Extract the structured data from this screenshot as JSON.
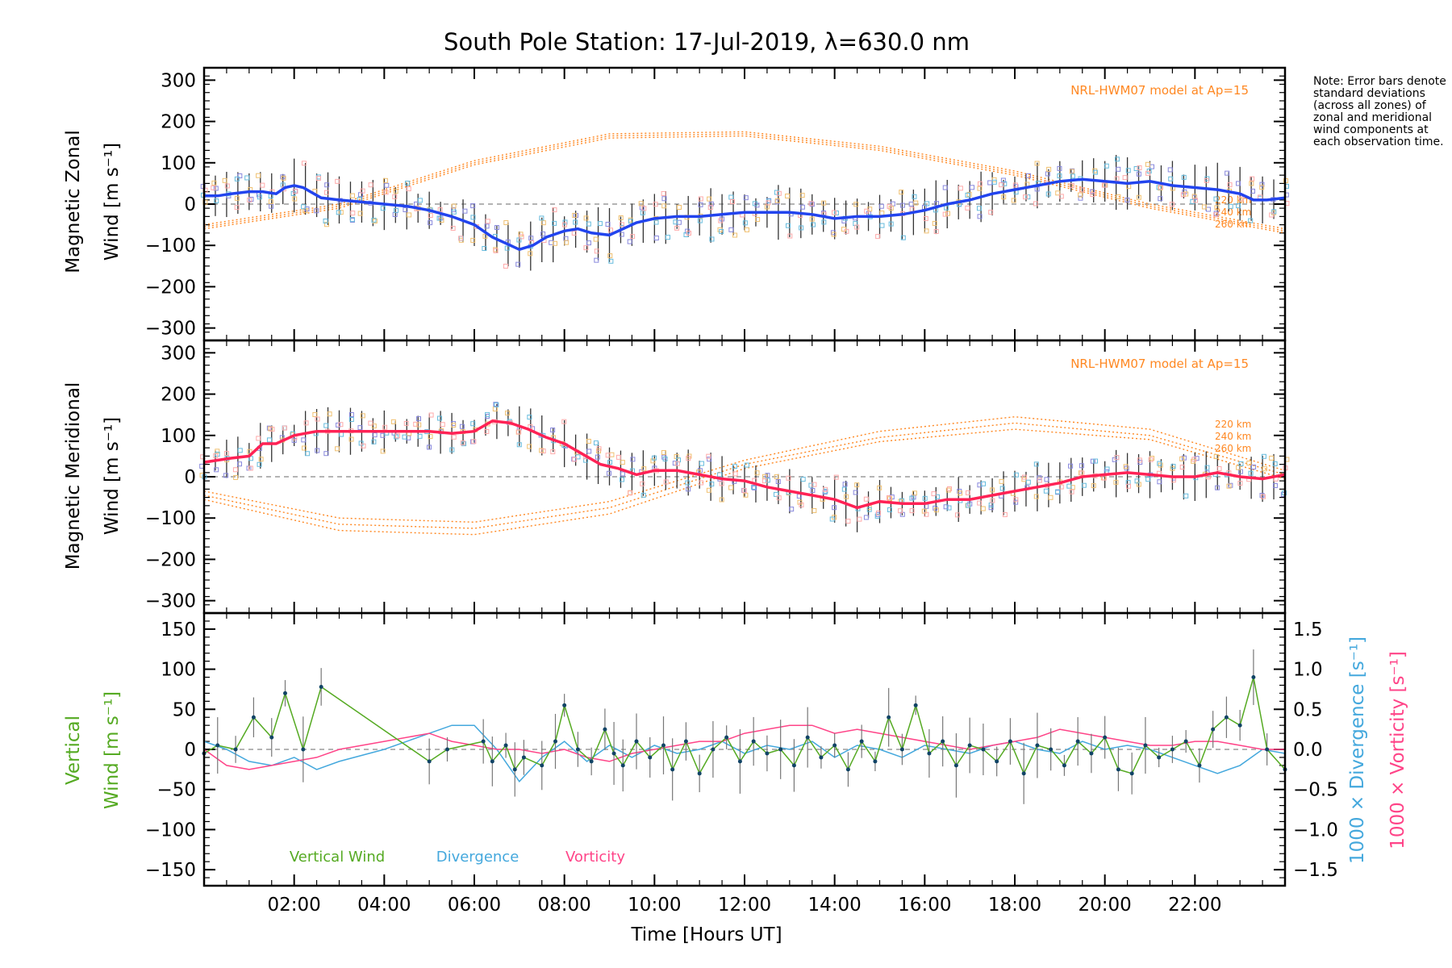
{
  "chart_data": {
    "type": "line",
    "title": "South Pole Station: 17-Jul-2019, λ=630.0 nm",
    "xlabel": "Time [Hours UT]",
    "xlim": [
      0,
      24
    ],
    "xticks": [
      2,
      4,
      6,
      8,
      10,
      12,
      14,
      16,
      18,
      20,
      22
    ],
    "xtick_labels": [
      "02:00",
      "04:00",
      "06:00",
      "08:00",
      "10:00",
      "12:00",
      "14:00",
      "16:00",
      "18:00",
      "20:00",
      "22:00"
    ],
    "note": "Note: Error bars denote standard deviations (across all zones) of zonal and meridional wind components at each observation time.",
    "colors": {
      "zonal": "#2244ee",
      "meridional": "#ff2255",
      "model": "#ff8822",
      "vertical": "#55aa22",
      "divergence": "#44a8dd",
      "vorticity": "#ff4488",
      "scatter": "#8888dd"
    },
    "panels": [
      {
        "name": "zonal",
        "ylabel_line1": "Magnetic Zonal",
        "ylabel_line2": "Wind [m s⁻¹]",
        "ylim": [
          -330,
          330
        ],
        "yticks": [
          -300,
          -200,
          -100,
          0,
          100,
          200,
          300
        ],
        "ytick_labels": [
          "−300",
          "−200",
          "−100",
          "0",
          "100",
          "200",
          "300"
        ],
        "model_label": "NRL-HWM07 model at Ap=15",
        "model_altitudes": [
          "220 km",
          "240 km",
          "260 km"
        ],
        "series": {
          "name": "Magnetic Zonal Wind",
          "x": [
            0.0,
            0.3,
            0.6,
            1.0,
            1.3,
            1.6,
            1.8,
            2.0,
            2.2,
            2.6,
            3.0,
            3.5,
            4.0,
            4.5,
            5.0,
            5.5,
            6.0,
            6.4,
            6.8,
            7.0,
            7.3,
            7.6,
            8.0,
            8.3,
            8.6,
            9.0,
            9.3,
            9.6,
            10.0,
            10.5,
            11.0,
            11.5,
            12.0,
            12.5,
            13.0,
            13.5,
            14.0,
            14.5,
            15.0,
            15.5,
            16.0,
            16.5,
            17.0,
            17.5,
            18.0,
            18.5,
            19.0,
            19.5,
            20.0,
            20.5,
            21.0,
            21.5,
            22.0,
            22.5,
            23.0,
            23.3,
            23.6,
            24.0
          ],
          "y": [
            20,
            20,
            25,
            30,
            30,
            25,
            40,
            45,
            40,
            15,
            10,
            5,
            0,
            -5,
            -15,
            -30,
            -50,
            -80,
            -100,
            -110,
            -100,
            -80,
            -65,
            -60,
            -70,
            -75,
            -60,
            -45,
            -35,
            -30,
            -30,
            -25,
            -20,
            -20,
            -20,
            -25,
            -35,
            -30,
            -30,
            -25,
            -15,
            0,
            10,
            25,
            35,
            45,
            55,
            60,
            55,
            50,
            55,
            45,
            40,
            35,
            25,
            10,
            10,
            15
          ]
        },
        "model": {
          "x": [
            0,
            3,
            6,
            9,
            12,
            15,
            18,
            21,
            24
          ],
          "y_220": [
            -60,
            -10,
            95,
            160,
            165,
            130,
            70,
            -10,
            -70
          ],
          "y_240": [
            -55,
            -5,
            100,
            165,
            170,
            135,
            75,
            -5,
            -65
          ],
          "y_260": [
            -50,
            0,
            105,
            170,
            175,
            140,
            80,
            0,
            -60
          ]
        }
      },
      {
        "name": "meridional",
        "ylabel_line1": "Magnetic Meridional",
        "ylabel_line2": "Wind [m s⁻¹]",
        "ylim": [
          -330,
          330
        ],
        "yticks": [
          -300,
          -200,
          -100,
          0,
          100,
          200,
          300
        ],
        "ytick_labels": [
          "−300",
          "−200",
          "−100",
          "0",
          "100",
          "200",
          "300"
        ],
        "model_label": "NRL-HWM07 model at Ap=15",
        "model_altitudes": [
          "220 km",
          "240 km",
          "260 km"
        ],
        "series": {
          "name": "Magnetic Meridional Wind",
          "x": [
            0.0,
            0.3,
            0.6,
            1.0,
            1.3,
            1.6,
            2.0,
            2.5,
            3.0,
            4.0,
            5.0,
            5.5,
            6.0,
            6.4,
            6.8,
            7.2,
            7.6,
            8.0,
            8.4,
            8.8,
            9.2,
            9.6,
            10.0,
            10.5,
            11.0,
            11.5,
            12.0,
            12.5,
            13.0,
            13.5,
            14.0,
            14.5,
            15.0,
            15.5,
            16.0,
            16.5,
            17.0,
            17.5,
            18.0,
            18.5,
            19.0,
            19.5,
            20.0,
            20.5,
            21.0,
            21.5,
            22.0,
            22.5,
            23.0,
            23.5,
            24.0
          ],
          "y": [
            35,
            40,
            45,
            50,
            80,
            80,
            100,
            110,
            110,
            110,
            110,
            105,
            110,
            135,
            130,
            115,
            95,
            80,
            55,
            30,
            20,
            5,
            15,
            15,
            5,
            -5,
            -10,
            -25,
            -35,
            -45,
            -55,
            -75,
            -60,
            -65,
            -65,
            -55,
            -55,
            -45,
            -35,
            -25,
            -15,
            0,
            5,
            10,
            5,
            0,
            0,
            10,
            0,
            -5,
            5
          ]
        },
        "model": {
          "x": [
            0,
            3,
            6,
            9,
            12,
            15,
            18,
            21,
            24
          ],
          "y_220": [
            -35,
            -100,
            -110,
            -60,
            40,
            110,
            145,
            115,
            15
          ],
          "y_240": [
            -45,
            -115,
            -125,
            -75,
            30,
            95,
            130,
            100,
            5
          ],
          "y_260": [
            -55,
            -130,
            -140,
            -90,
            20,
            85,
            115,
            90,
            -5
          ]
        }
      },
      {
        "name": "vertical",
        "ylabel_line1": "Vertical",
        "ylabel_line2": "Wind [m s⁻¹]",
        "ylim": [
          -170,
          170
        ],
        "yticks": [
          -150,
          -100,
          -50,
          0,
          50,
          100,
          150
        ],
        "ytick_labels": [
          "−150",
          "−100",
          "−50",
          "0",
          "50",
          "100",
          "150"
        ],
        "right_axis": {
          "ylim": [
            -1.7,
            1.7
          ],
          "yticks": [
            -1.5,
            -1.0,
            -0.5,
            0.0,
            0.5,
            1.0,
            1.5
          ],
          "ytick_labels": [
            "−1.5",
            "−1.0",
            "−0.5",
            "0.0",
            "0.5",
            "1.0",
            "1.5"
          ],
          "label_divergence": "1000 × Divergence [s⁻¹]",
          "label_vorticity": "1000 × Vorticity [s⁻¹]"
        },
        "legend": [
          "Vertical Wind",
          "Divergence",
          "Vorticity"
        ],
        "series": [
          {
            "name": "Vertical Wind",
            "x": [
              0.0,
              0.3,
              0.7,
              1.1,
              1.5,
              1.8,
              2.2,
              2.6,
              5.0,
              5.4,
              6.2,
              6.4,
              6.7,
              6.9,
              7.1,
              7.5,
              7.8,
              8.0,
              8.3,
              8.6,
              8.9,
              9.1,
              9.3,
              9.6,
              9.9,
              10.2,
              10.4,
              10.7,
              11.0,
              11.3,
              11.6,
              11.9,
              12.2,
              12.5,
              12.8,
              13.1,
              13.4,
              13.7,
              14.0,
              14.3,
              14.6,
              14.9,
              15.2,
              15.5,
              15.8,
              16.1,
              16.4,
              16.7,
              17.0,
              17.3,
              17.6,
              17.9,
              18.2,
              18.5,
              18.8,
              19.1,
              19.4,
              19.7,
              20.0,
              20.3,
              20.6,
              20.9,
              21.2,
              21.5,
              21.8,
              22.1,
              22.4,
              22.7,
              23.0,
              23.3,
              23.6,
              24.0
            ],
            "y": [
              -5,
              5,
              0,
              40,
              15,
              70,
              0,
              78,
              -15,
              0,
              10,
              -15,
              5,
              -25,
              -10,
              -20,
              10,
              55,
              0,
              -15,
              25,
              -5,
              -20,
              10,
              -10,
              5,
              -25,
              10,
              -30,
              0,
              15,
              -15,
              10,
              -5,
              0,
              -20,
              15,
              -10,
              5,
              -25,
              10,
              -15,
              40,
              0,
              55,
              -5,
              10,
              -20,
              5,
              0,
              -15,
              10,
              -30,
              5,
              0,
              -20,
              10,
              -5,
              15,
              -25,
              -30,
              5,
              -10,
              0,
              10,
              -20,
              25,
              40,
              30,
              90,
              0,
              -25
            ]
          },
          {
            "name": "Divergence",
            "x": [
              0.0,
              0.5,
              1.0,
              1.5,
              2.0,
              2.5,
              3.0,
              4.0,
              5.0,
              5.5,
              6.0,
              6.5,
              7.0,
              7.5,
              8.0,
              8.5,
              9.0,
              9.5,
              10.0,
              10.5,
              11.0,
              11.5,
              12.0,
              12.5,
              13.0,
              13.5,
              14.0,
              14.5,
              15.0,
              15.5,
              16.0,
              16.5,
              17.0,
              17.5,
              18.0,
              18.5,
              19.0,
              19.5,
              20.0,
              20.5,
              21.0,
              21.5,
              22.0,
              22.5,
              23.0,
              23.5,
              24.0
            ],
            "y": [
              0.1,
              0.0,
              -0.15,
              -0.2,
              -0.1,
              -0.25,
              -0.15,
              0.0,
              0.2,
              0.3,
              0.3,
              0.0,
              -0.4,
              -0.1,
              0.1,
              -0.15,
              0.05,
              -0.1,
              0.05,
              -0.05,
              0.0,
              0.1,
              -0.05,
              0.05,
              0.0,
              0.1,
              -0.1,
              0.05,
              0.0,
              -0.1,
              0.05,
              0.0,
              -0.05,
              0.05,
              0.1,
              0.0,
              -0.05,
              0.1,
              0.0,
              0.05,
              0.0,
              -0.1,
              -0.2,
              -0.3,
              -0.2,
              0.0,
              -0.05
            ]
          },
          {
            "name": "Vorticity",
            "x": [
              0.0,
              0.5,
              1.0,
              1.5,
              2.0,
              2.5,
              3.0,
              4.0,
              5.0,
              5.5,
              6.0,
              6.5,
              7.0,
              7.5,
              8.0,
              8.5,
              9.0,
              9.5,
              10.0,
              10.5,
              11.0,
              11.5,
              12.0,
              12.5,
              13.0,
              13.5,
              14.0,
              14.5,
              15.0,
              15.5,
              16.0,
              16.5,
              17.0,
              17.5,
              18.0,
              18.5,
              19.0,
              19.5,
              20.0,
              20.5,
              21.0,
              21.5,
              22.0,
              22.5,
              23.0,
              23.5,
              24.0
            ],
            "y": [
              0.0,
              -0.2,
              -0.25,
              -0.2,
              -0.15,
              -0.1,
              0.0,
              0.1,
              0.2,
              0.1,
              0.05,
              0.0,
              0.0,
              -0.05,
              0.0,
              -0.1,
              -0.15,
              -0.05,
              0.0,
              0.05,
              0.1,
              0.1,
              0.2,
              0.25,
              0.3,
              0.3,
              0.2,
              0.25,
              0.2,
              0.15,
              0.1,
              0.05,
              0.0,
              0.05,
              0.1,
              0.15,
              0.25,
              0.2,
              0.15,
              0.1,
              0.05,
              0.05,
              0.1,
              0.1,
              0.05,
              0.0,
              0.0
            ]
          }
        ]
      }
    ]
  }
}
